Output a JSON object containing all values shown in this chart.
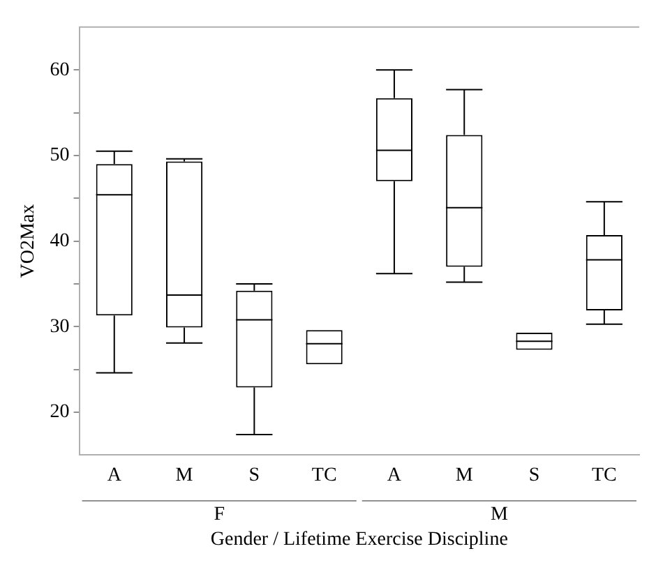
{
  "chart_data": {
    "type": "box",
    "xlabel": "Gender / Lifetime Exercise Discipline",
    "ylabel": "VO2Max",
    "categories": [
      "A",
      "M",
      "S",
      "TC",
      "A",
      "M",
      "S",
      "TC"
    ],
    "annotations": [
      "F",
      "M"
    ],
    "boxes": [
      {
        "low": 24.6,
        "q1": 31.3,
        "median": 45.4,
        "q3": 49.0,
        "high": 50.5
      },
      {
        "low": 28.1,
        "q1": 29.9,
        "median": 33.7,
        "q3": 49.3,
        "high": 49.6
      },
      {
        "low": 17.4,
        "q1": 22.9,
        "median": 30.8,
        "q3": 34.2,
        "high": 35.0
      },
      {
        "low": 25.6,
        "q1": 25.6,
        "median": 28.0,
        "q3": 29.6,
        "high": 29.6
      },
      {
        "low": 36.2,
        "q1": 47.0,
        "median": 50.6,
        "q3": 56.7,
        "high": 60.0
      },
      {
        "low": 35.2,
        "q1": 37.0,
        "median": 43.9,
        "q3": 52.4,
        "high": 57.7
      },
      {
        "low": 27.3,
        "q1": 27.3,
        "median": 28.3,
        "q3": 29.3,
        "high": 29.3
      },
      {
        "low": 30.3,
        "q1": 31.9,
        "median": 37.8,
        "q3": 40.7,
        "high": 44.6
      }
    ],
    "color": "#000000",
    "ylim": [
      15,
      65
    ],
    "yticks": [
      20,
      {
        "value": 25,
        "label": null
      },
      30,
      {
        "value": 35,
        "label": null
      },
      40,
      {
        "value": 45,
        "label": null
      },
      50,
      {
        "value": 55,
        "label": null
      },
      60
    ],
    "grid": false
  }
}
